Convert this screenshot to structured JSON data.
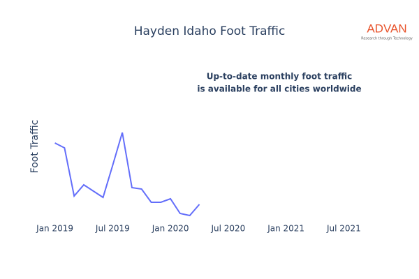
{
  "chart_data": {
    "type": "line",
    "title": "Hayden Idaho Foot Traffic",
    "y_label": "Foot Traffic",
    "annotation": [
      "Up-to-date monthly foot traffic",
      "is available for all cities worldwide"
    ],
    "logo": {
      "name": "ADVAN",
      "tagline": "Research through Technology"
    },
    "x": [
      "2019-01",
      "2019-02",
      "2019-03",
      "2019-04",
      "2019-05",
      "2019-06",
      "2019-07",
      "2019-08",
      "2019-09",
      "2019-10",
      "2019-11",
      "2019-12",
      "2020-01",
      "2020-02",
      "2020-03",
      "2020-04"
    ],
    "series": [
      {
        "name": "Foot Traffic",
        "color": "#636efa",
        "values": [
          115,
          108,
          39,
          55,
          46,
          37,
          83,
          130,
          51,
          49,
          30,
          30,
          35,
          14,
          11,
          27
        ]
      }
    ],
    "xlim": [
      "2018-11",
      "2021-09"
    ],
    "xticks": [
      {
        "value": "2019-01",
        "label": "Jan 2019"
      },
      {
        "value": "2019-07",
        "label": "Jul 2019"
      },
      {
        "value": "2020-01",
        "label": "Jan 2020"
      },
      {
        "value": "2020-07",
        "label": "Jul 2020"
      },
      {
        "value": "2021-01",
        "label": "Jan 2021"
      },
      {
        "value": "2021-07",
        "label": "Jul 2021"
      }
    ],
    "ylim": [
      0,
      140
    ],
    "logo_color": "#e8532b"
  }
}
